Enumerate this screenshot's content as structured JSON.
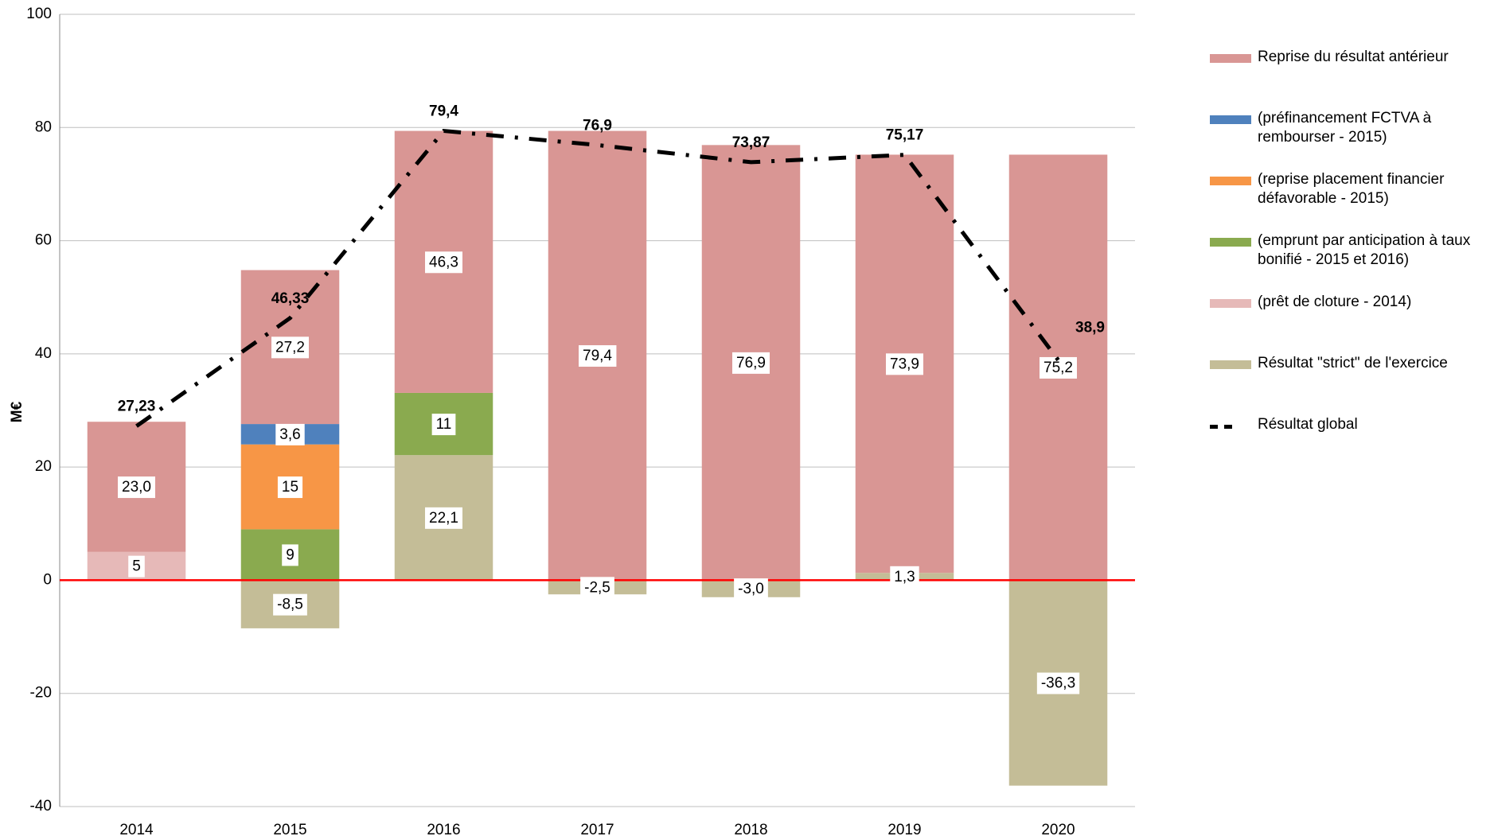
{
  "chart_data": {
    "type": "stacked-bar-line",
    "y_label": "M€",
    "categories": [
      "2014",
      "2015",
      "2016",
      "2017",
      "2018",
      "2019",
      "2020"
    ],
    "ylim": [
      -40,
      100
    ],
    "yticks": [
      -40,
      -20,
      0,
      20,
      40,
      60,
      80,
      100
    ],
    "grid": true,
    "series": [
      {
        "name": "Résultat \"strict\" de l'exercice",
        "color": "#c4bd97",
        "values": [
          null,
          -8.5,
          22.1,
          -2.5,
          -3.0,
          1.3,
          -36.3
        ],
        "value_labels": [
          null,
          "-8,5",
          "22,1",
          "-2,5",
          "-3,0",
          "1,3",
          "-36,3"
        ]
      },
      {
        "name": "(prêt de cloture - 2014)",
        "color": "#e6b9b8",
        "values": [
          5,
          null,
          null,
          null,
          null,
          null,
          null
        ],
        "value_labels": [
          "5",
          null,
          null,
          null,
          null,
          null,
          null
        ]
      },
      {
        "name": "(emprunt par anticipation à taux bonifié - 2015 et 2016)",
        "color": "#8aaa4f",
        "values": [
          null,
          9,
          11,
          null,
          null,
          null,
          null
        ],
        "value_labels": [
          null,
          "9",
          "11",
          null,
          null,
          null,
          null
        ]
      },
      {
        "name": "(reprise placement financier défavorable - 2015)",
        "color": "#f79646",
        "values": [
          null,
          15,
          null,
          null,
          null,
          null,
          null
        ],
        "value_labels": [
          null,
          "15",
          null,
          null,
          null,
          null,
          null
        ]
      },
      {
        "name": "(préfinancement FCTVA à rembourser - 2015)",
        "color": "#4f81bd",
        "values": [
          null,
          3.6,
          null,
          null,
          null,
          null,
          null
        ],
        "value_labels": [
          null,
          "3,6",
          null,
          null,
          null,
          null,
          null
        ]
      },
      {
        "name": "Reprise du résultat antérieur",
        "color": "#d99694",
        "values": [
          23.0,
          27.2,
          46.3,
          79.4,
          76.9,
          73.9,
          75.2
        ],
        "value_labels": [
          "23,0",
          "27,2",
          "46,3",
          "79,4",
          "76,9",
          "73,9",
          "75,2"
        ]
      },
      {
        "name": "Résultat global",
        "type": "line",
        "color": "#000000",
        "label_color": "#ff0000",
        "values": [
          27.23,
          46.33,
          79.4,
          76.9,
          73.87,
          75.17,
          38.9
        ],
        "value_labels": [
          "27,23",
          "46,33",
          "79,4",
          "76,9",
          "73,87",
          "75,17",
          "38,9"
        ]
      }
    ],
    "legend_order": [
      5,
      4,
      3,
      2,
      1,
      0,
      6
    ]
  }
}
